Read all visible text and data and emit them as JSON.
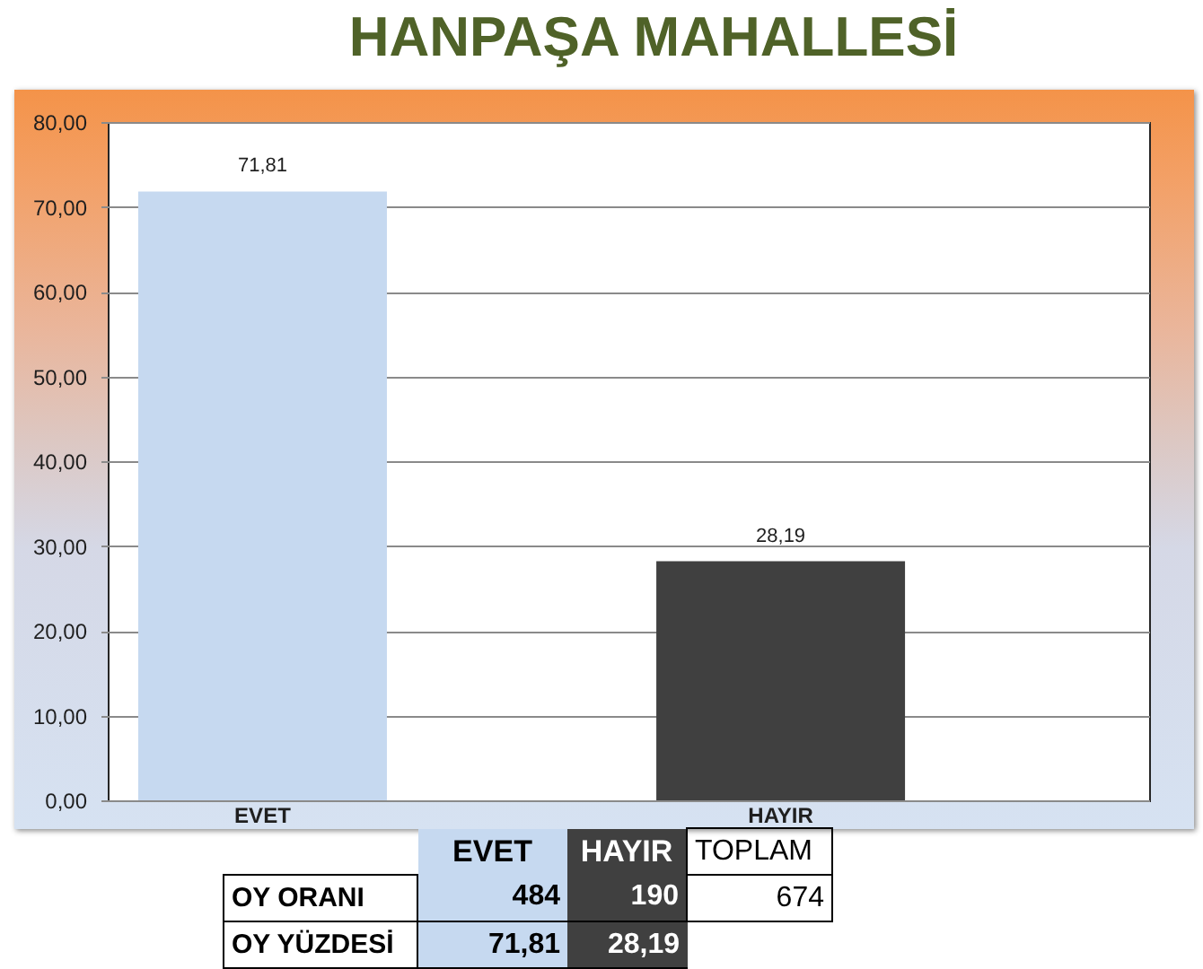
{
  "chart_data": {
    "type": "bar",
    "title": "HANPAŞA MAHALLESİ",
    "categories": [
      "EVET",
      "HAYIR"
    ],
    "values": [
      71.81,
      28.19
    ],
    "colors": [
      "#c6d9f0",
      "#404040"
    ],
    "value_labels": [
      "71,81",
      "28,19"
    ],
    "ylim": [
      0,
      80
    ],
    "yticks": [
      {
        "value": 0,
        "label": "0,00"
      },
      {
        "value": 10,
        "label": "10,00"
      },
      {
        "value": 20,
        "label": "20,00"
      },
      {
        "value": 30,
        "label": "30,00"
      },
      {
        "value": 40,
        "label": "40,00"
      },
      {
        "value": 50,
        "label": "50,00"
      },
      {
        "value": 60,
        "label": "60,00"
      },
      {
        "value": 70,
        "label": "70,00"
      },
      {
        "value": 80,
        "label": "80,00"
      }
    ],
    "grid": "y",
    "annotations": [
      "TOPLAM",
      "OY ORANI",
      "484",
      "190",
      "674",
      "OY YÜZDESİ"
    ]
  }
}
